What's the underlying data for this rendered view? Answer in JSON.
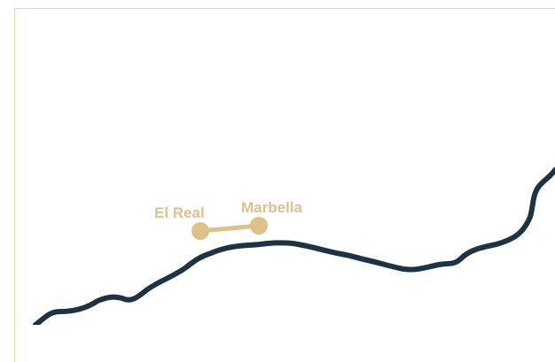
{
  "map": {
    "places": [
      {
        "name": "El Real"
      },
      {
        "name": "Marbella"
      }
    ],
    "colors": {
      "coastline": "#1d3344",
      "route": "#dcc28a",
      "frame": "#e6d3a8",
      "background": "#ffffff"
    }
  }
}
